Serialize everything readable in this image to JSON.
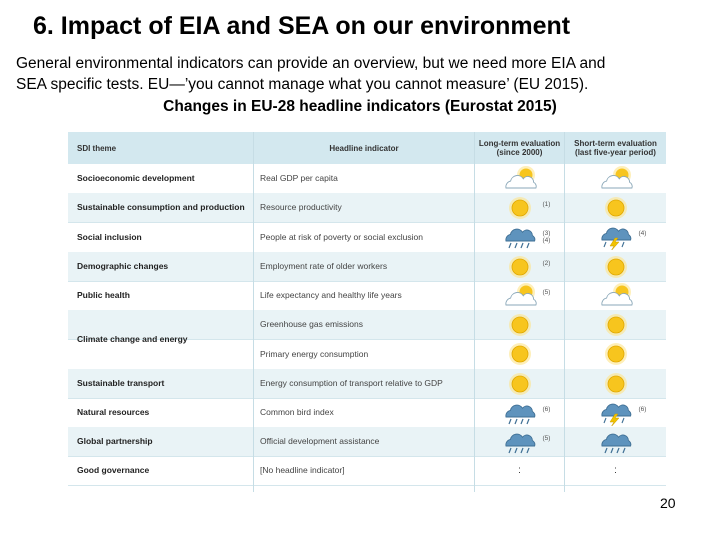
{
  "slide": {
    "title": "6. Impact of EIA and SEA on our environment",
    "body_line1": "General environmental indicators can provide an overview, but we need more EIA and",
    "body_line2": "SEA specific tests. EU—’you cannot manage what you cannot measure’ (EU 2015).",
    "caption": "Changes in EU-28 headline indicators (Eurostat 2015)",
    "page_number": "20"
  },
  "table": {
    "headers": {
      "theme": "SDI theme",
      "indicator": "Headline indicator",
      "long_term": "Long-term evaluation (since 2000)",
      "short_term": "Short-term evaluation (last five-year period)"
    },
    "rows": [
      {
        "theme": "Socioeconomic development",
        "indicator": "Real GDP per capita",
        "long": "sun-cloud-icon",
        "long_note": "",
        "short": "sun-cloud-icon",
        "short_note": ""
      },
      {
        "theme": "Sustainable consumption and production",
        "indicator": "Resource productivity",
        "long": "sun-icon",
        "long_note": "(1)",
        "short": "sun-icon",
        "short_note": ""
      },
      {
        "theme": "Social inclusion",
        "indicator": "People at risk of poverty or social exclusion",
        "long": "rain-cloud-icon",
        "long_note": "(3)(4)",
        "short": "storm-cloud-icon",
        "short_note": "(4)"
      },
      {
        "theme": "Demographic changes",
        "indicator": "Employment rate of older workers",
        "long": "sun-icon",
        "long_note": "(2)",
        "short": "sun-icon",
        "short_note": ""
      },
      {
        "theme": "Public health",
        "indicator": "Life expectancy and healthy life years",
        "long": "sun-cloud-icon",
        "long_note": "(5)",
        "short": "sun-cloud-icon",
        "short_note": ""
      },
      {
        "theme": "Climate change and energy",
        "indicator": "Greenhouse gas emissions",
        "long": "sun-icon",
        "long_note": "",
        "short": "sun-icon",
        "short_note": ""
      },
      {
        "theme": "",
        "indicator": "Primary energy consumption",
        "long": "sun-icon",
        "long_note": "",
        "short": "sun-icon",
        "short_note": ""
      },
      {
        "theme": "Sustainable transport",
        "indicator": "Energy consumption of transport relative to GDP",
        "long": "sun-icon",
        "long_note": "",
        "short": "sun-icon",
        "short_note": ""
      },
      {
        "theme": "Natural resources",
        "indicator": "Common bird index",
        "long": "rain-cloud-icon",
        "long_note": "(6)",
        "short": "storm-cloud-icon",
        "short_note": "(6)"
      },
      {
        "theme": "Global partnership",
        "indicator": "Official development assistance",
        "long": "rain-cloud-icon",
        "long_note": "(5)",
        "short": "rain-cloud-icon",
        "short_note": ""
      },
      {
        "theme": "Good governance",
        "indicator": "[No headline indicator]",
        "long": ":",
        "long_note": "",
        "short": ":",
        "short_note": ""
      }
    ]
  },
  "colors": {
    "header_bg": "#d3e8ef",
    "alt_row_bg": "#e9f3f6",
    "sun": "#f7c51e",
    "cloud": "#ffffff",
    "rain_cloud": "#5e93bd",
    "bolt": "#f2c200"
  }
}
